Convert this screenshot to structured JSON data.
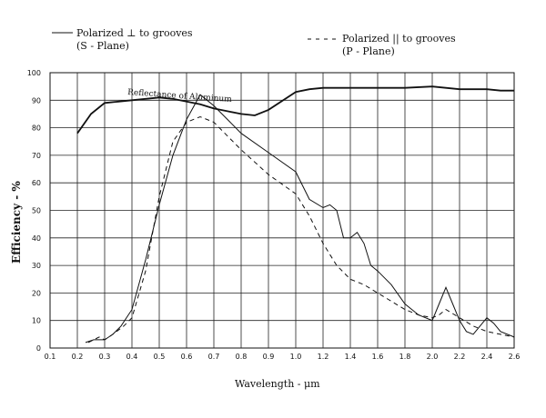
{
  "chart_data": {
    "type": "line",
    "xlabel": "Wavelength - μm",
    "ylabel": "Efficiency - %",
    "ylim": [
      0,
      100
    ],
    "x_ticks": [
      "0.1",
      "0.2",
      "0.3",
      "0.4",
      "0.5",
      "0.6",
      "0.7",
      "0.8",
      "0.9",
      "1.0",
      "1.2",
      "1.4",
      "1.6",
      "1.8",
      "2.0",
      "2.2",
      "2.4",
      "2.6"
    ],
    "y_ticks": [
      "0",
      "10",
      "20",
      "30",
      "40",
      "50",
      "60",
      "70",
      "80",
      "90",
      "100"
    ],
    "grid": true,
    "legend_placement": "top",
    "legend": {
      "s_line1": "Polarized ⊥ to grooves",
      "s_line2": "(S - Plane)",
      "p_line1": "Polarized || to grooves",
      "p_line2": "(P - Plane)"
    },
    "annotation": "Reflectance of Aluminum",
    "series": [
      {
        "name": "Reflectance of Aluminum",
        "style": "thick-solid",
        "x": [
          0.2,
          0.25,
          0.3,
          0.35,
          0.4,
          0.45,
          0.5,
          0.55,
          0.6,
          0.65,
          0.7,
          0.75,
          0.8,
          0.85,
          0.9,
          1.0,
          1.1,
          1.2,
          1.4,
          1.6,
          1.8,
          2.0,
          2.1,
          2.2,
          2.3,
          2.4,
          2.5,
          2.6
        ],
        "values": [
          78,
          85,
          89,
          89.5,
          90,
          90.5,
          91,
          90.5,
          89.5,
          88.5,
          87,
          86,
          85,
          84.5,
          86.5,
          93,
          94,
          94.5,
          94.5,
          94.5,
          94.5,
          95,
          94.5,
          94,
          94,
          94,
          93.5,
          93.5
        ]
      },
      {
        "name": "Polarized ⊥ to grooves (S - Plane)",
        "style": "thin-solid",
        "x": [
          0.23,
          0.26,
          0.3,
          0.33,
          0.36,
          0.4,
          0.45,
          0.5,
          0.55,
          0.6,
          0.65,
          0.7,
          0.75,
          0.8,
          0.9,
          1.0,
          1.1,
          1.2,
          1.25,
          1.3,
          1.35,
          1.4,
          1.45,
          1.5,
          1.55,
          1.6,
          1.7,
          1.8,
          1.9,
          2.0,
          2.05,
          2.1,
          2.15,
          2.2,
          2.25,
          2.3,
          2.35,
          2.4,
          2.45,
          2.5,
          2.6
        ],
        "values": [
          2,
          3,
          3,
          5,
          8,
          14,
          32,
          52,
          70,
          83,
          92,
          88,
          83,
          78,
          71,
          64,
          54,
          51,
          52,
          50,
          40,
          40,
          42,
          38,
          30,
          28,
          23,
          16,
          12,
          10,
          16,
          22,
          16,
          10,
          6,
          5,
          8,
          11,
          9,
          6,
          4
        ]
      },
      {
        "name": "Polarized || to grooves (P - Plane)",
        "style": "dashed",
        "x": [
          0.24,
          0.28,
          0.3,
          0.33,
          0.37,
          0.4,
          0.45,
          0.5,
          0.55,
          0.6,
          0.65,
          0.7,
          0.75,
          0.8,
          0.9,
          1.0,
          1.1,
          1.2,
          1.3,
          1.4,
          1.5,
          1.6,
          1.7,
          1.8,
          1.9,
          2.0,
          2.05,
          2.1,
          2.2,
          2.3,
          2.4,
          2.5,
          2.6
        ],
        "values": [
          2,
          4,
          3,
          5,
          8,
          11,
          28,
          55,
          75,
          82,
          84,
          82,
          77,
          72,
          63,
          56,
          48,
          38,
          30,
          25,
          23,
          20,
          17,
          14,
          12,
          11,
          12,
          14,
          11,
          8,
          6,
          5,
          4
        ]
      }
    ]
  }
}
